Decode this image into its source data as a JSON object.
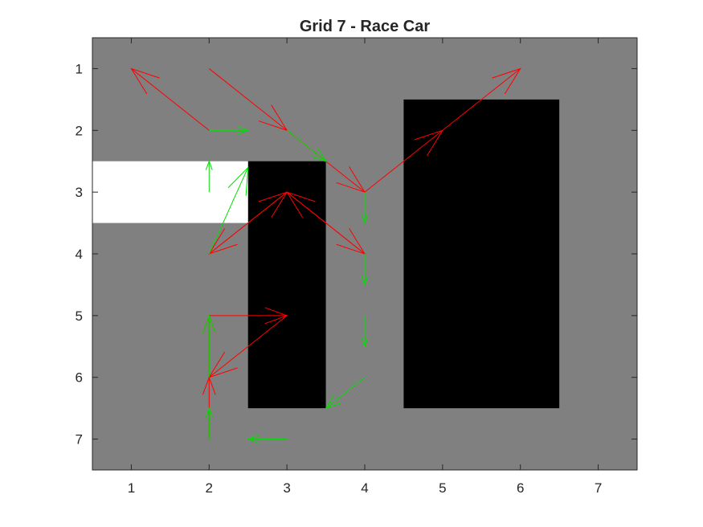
{
  "chart_data": {
    "type": "quiver",
    "title": "Grid 7 - Race Car",
    "xlabel": "",
    "ylabel": "",
    "xlim": [
      0.5,
      7.5
    ],
    "ylim": [
      0.5,
      7.5
    ],
    "y_reversed": true,
    "xticks": [
      "1",
      "2",
      "3",
      "4",
      "5",
      "6",
      "7"
    ],
    "yticks": [
      "1",
      "2",
      "3",
      "4",
      "5",
      "6",
      "7"
    ],
    "grid": false,
    "cells": {
      "background_color": "#808080",
      "wall_color": "#000000",
      "start_color": "#ffffff",
      "walls": [
        {
          "cols": [
            3,
            3
          ],
          "rows": [
            3,
            6
          ]
        },
        {
          "cols": [
            5,
            6
          ],
          "rows": [
            2,
            6
          ]
        }
      ],
      "start": [
        {
          "cols": [
            1,
            2
          ],
          "rows": [
            3,
            3
          ]
        }
      ]
    },
    "series": [
      {
        "color": "#ff0000",
        "arrows": [
          [
            2,
            7,
            0,
            -1
          ],
          [
            2,
            6,
            0,
            -1
          ],
          [
            2,
            5,
            1,
            0
          ],
          [
            3,
            5,
            -1,
            1
          ],
          [
            2,
            4,
            1,
            -1
          ],
          [
            3,
            3,
            1,
            1
          ],
          [
            4,
            4,
            -1,
            -1
          ],
          [
            3,
            3,
            -1,
            1
          ],
          [
            2,
            2,
            -1,
            -1
          ],
          [
            2,
            1,
            1,
            1
          ],
          [
            3,
            2,
            1,
            1
          ],
          [
            4,
            3,
            1,
            -1
          ],
          [
            5,
            2,
            1,
            -1
          ]
        ]
      },
      {
        "color": "#00e000",
        "arrows": [
          [
            2,
            7,
            0,
            -0.5
          ],
          [
            2,
            6,
            0,
            -1
          ],
          [
            2,
            4,
            0.5,
            -1.4
          ],
          [
            2,
            3,
            0,
            -0.5
          ],
          [
            2,
            2,
            0.5,
            0
          ],
          [
            3,
            2,
            0.5,
            0.5
          ],
          [
            4,
            3,
            0,
            0.5
          ],
          [
            4,
            4,
            0,
            0.5
          ],
          [
            4,
            5,
            0,
            0.5
          ],
          [
            4,
            6,
            -0.5,
            0.5
          ],
          [
            3,
            7,
            -0.5,
            0
          ]
        ]
      }
    ]
  }
}
